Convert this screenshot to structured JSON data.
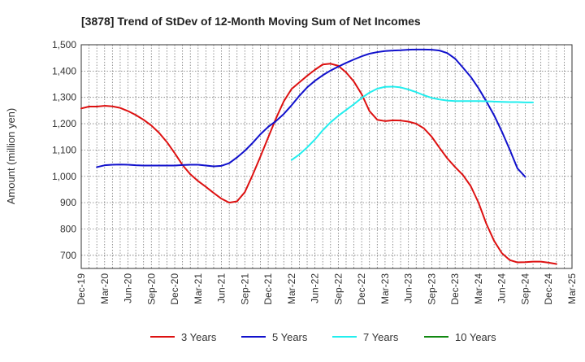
{
  "chart_data": {
    "type": "line",
    "title": "[3878]  Trend of StDev of 12-Month Moving Sum of Net Incomes",
    "ylabel": "Amount (million yen)",
    "xlabel": "",
    "ylim": [
      650,
      1500
    ],
    "yticks": [
      700,
      800,
      900,
      "1,000",
      "1,100",
      "1,200",
      "1,300",
      "1,400",
      "1,500"
    ],
    "ytick_values": [
      700,
      800,
      900,
      1000,
      1100,
      1200,
      1300,
      1400,
      1500
    ],
    "xticks": [
      "Dec-19",
      "Mar-20",
      "Jun-20",
      "Sep-20",
      "Dec-20",
      "Mar-21",
      "Jun-21",
      "Sep-21",
      "Dec-21",
      "Mar-22",
      "Jun-22",
      "Sep-22",
      "Dec-22",
      "Mar-23",
      "Jun-23",
      "Sep-23",
      "Dec-23",
      "Mar-24",
      "Jun-24",
      "Sep-24",
      "Dec-24",
      "Mar-25"
    ],
    "grid": true,
    "legend_position": "bottom",
    "series": [
      {
        "name": "3 Years",
        "color": "#dd1111",
        "start_index": 0,
        "values": [
          1258,
          1265,
          1265,
          1268,
          1266,
          1260,
          1248,
          1233,
          1215,
          1193,
          1165,
          1130,
          1088,
          1043,
          1008,
          982,
          960,
          937,
          915,
          900,
          905,
          940,
          1005,
          1075,
          1148,
          1220,
          1285,
          1332,
          1357,
          1382,
          1405,
          1425,
          1428,
          1420,
          1395,
          1360,
          1312,
          1248,
          1215,
          1210,
          1213,
          1212,
          1208,
          1200,
          1182,
          1150,
          1108,
          1068,
          1035,
          1005,
          963,
          900,
          820,
          755,
          708,
          682,
          673,
          674,
          676,
          676,
          672,
          667
        ]
      },
      {
        "name": "5 Years",
        "color": "#1111cc",
        "start_index": 2,
        "values": [
          1035,
          1042,
          1044,
          1045,
          1044,
          1042,
          1041,
          1041,
          1041,
          1041,
          1041,
          1043,
          1044,
          1044,
          1041,
          1038,
          1040,
          1050,
          1072,
          1097,
          1127,
          1160,
          1188,
          1210,
          1237,
          1270,
          1306,
          1338,
          1363,
          1384,
          1402,
          1417,
          1431,
          1444,
          1456,
          1466,
          1472,
          1476,
          1478,
          1479,
          1481,
          1482,
          1482,
          1481,
          1478,
          1468,
          1447,
          1413,
          1378,
          1335,
          1285,
          1232,
          1170,
          1102,
          1030,
          998
        ]
      },
      {
        "name": "7 Years",
        "color": "#22eeee",
        "start_index": 27,
        "values": [
          1062,
          1083,
          1110,
          1140,
          1175,
          1205,
          1230,
          1252,
          1274,
          1298,
          1318,
          1333,
          1340,
          1341,
          1338,
          1330,
          1320,
          1308,
          1298,
          1292,
          1288,
          1286,
          1286,
          1286,
          1286,
          1285,
          1284,
          1283,
          1282,
          1282,
          1281,
          1281
        ]
      },
      {
        "name": "10 Years",
        "color": "#118811",
        "start_index": 0,
        "values": []
      }
    ]
  }
}
